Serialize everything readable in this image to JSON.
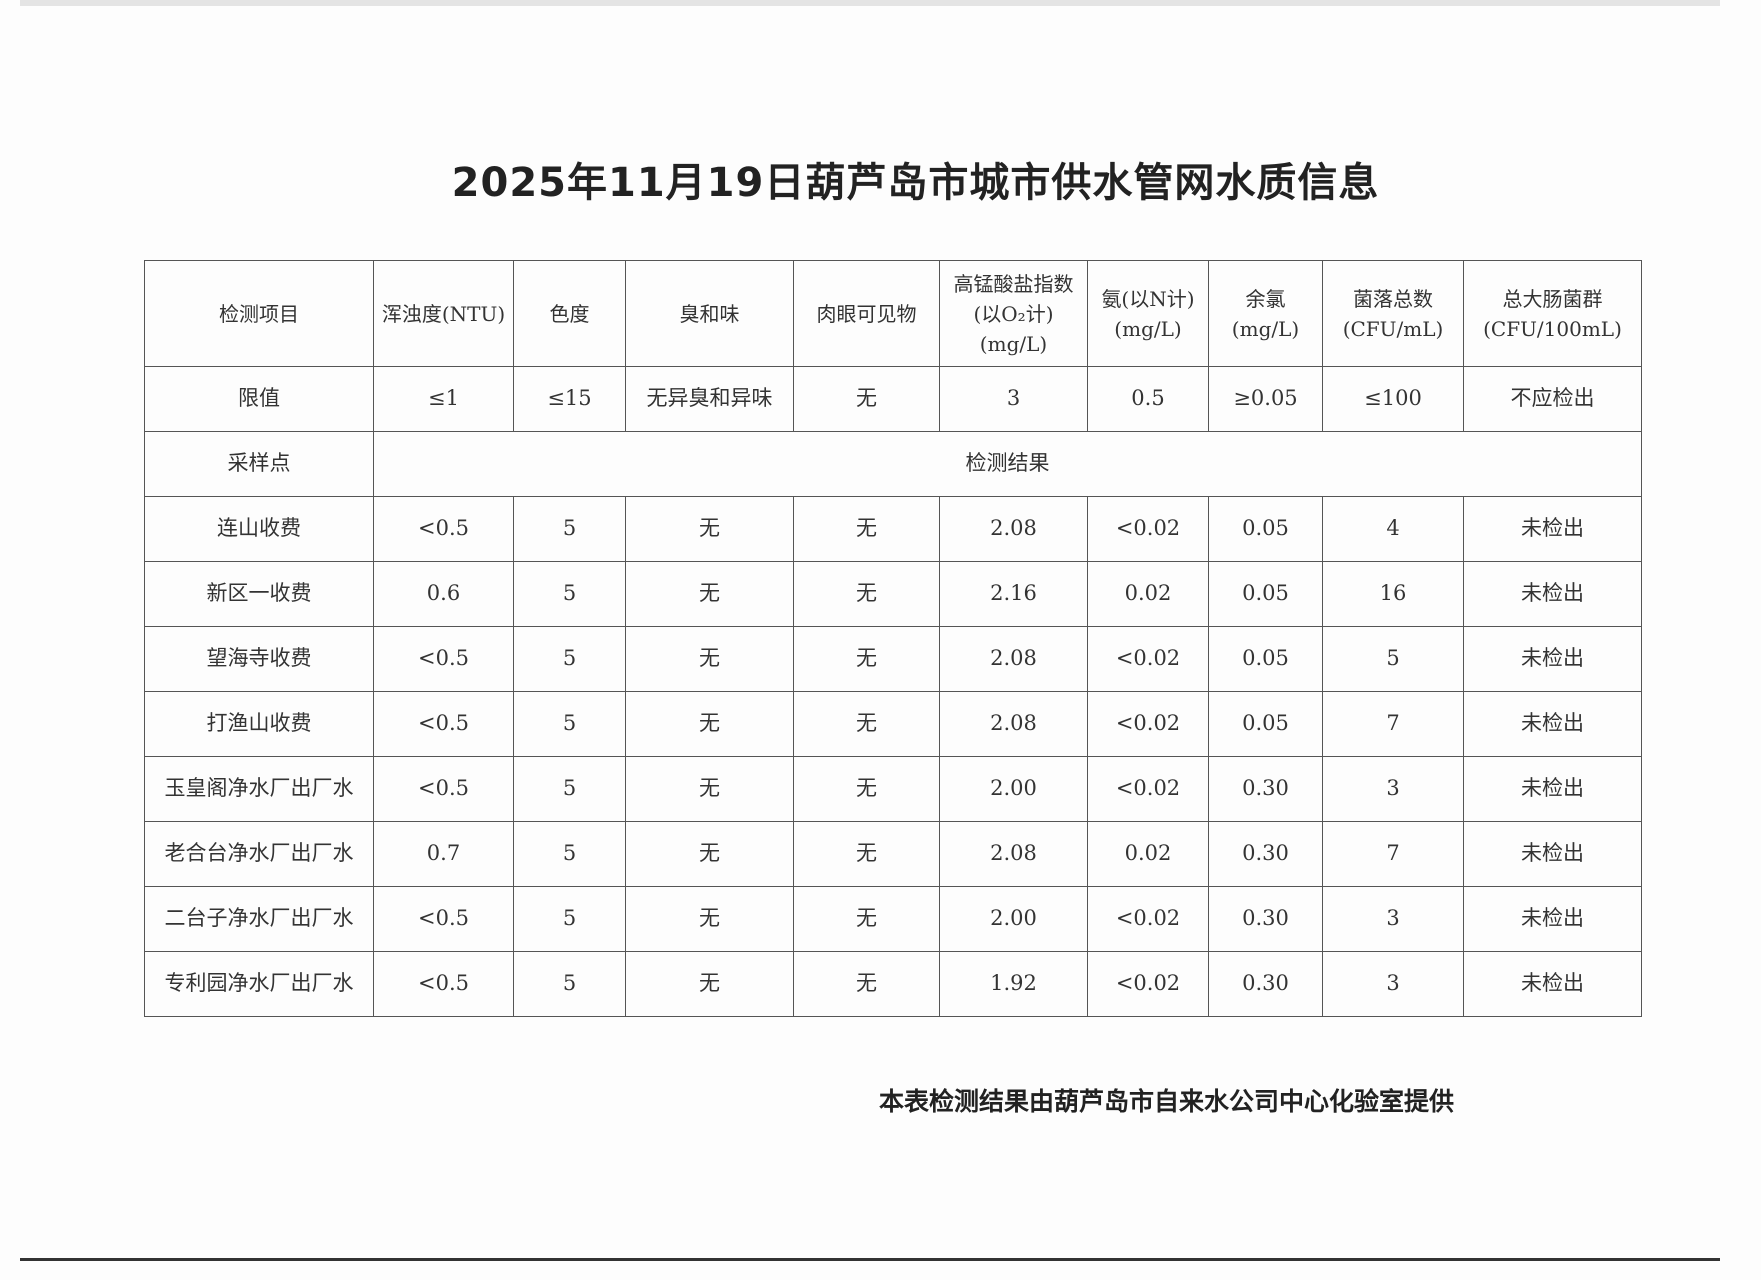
{
  "title": "2025年11月19日葫芦岛市城市供水管网水质信息",
  "table": {
    "headers": [
      "检测项目",
      "浑浊度(NTU)",
      "色度",
      "臭和味",
      "肉眼可见物",
      [
        "高锰酸盐指数",
        "(以O₂计)",
        "(mg/L)"
      ],
      [
        "氨(以N计)",
        "(mg/L)"
      ],
      [
        "余氯",
        "(mg/L)"
      ],
      [
        "菌落总数",
        "(CFU/mL)"
      ],
      [
        "总大肠菌群",
        "(CFU/100mL)"
      ]
    ],
    "limits_label": "限值",
    "limits": [
      "≤1",
      "≤15",
      "无异臭和异味",
      "无",
      "3",
      "0.5",
      "≥0.05",
      "≤100",
      "不应检出"
    ],
    "sample_label": "采样点",
    "result_label": "检测结果",
    "rows": [
      [
        "连山收费",
        "<0.5",
        "5",
        "无",
        "无",
        "2.08",
        "<0.02",
        "0.05",
        "4",
        "未检出"
      ],
      [
        "新区一收费",
        "0.6",
        "5",
        "无",
        "无",
        "2.16",
        "0.02",
        "0.05",
        "16",
        "未检出"
      ],
      [
        "望海寺收费",
        "<0.5",
        "5",
        "无",
        "无",
        "2.08",
        "<0.02",
        "0.05",
        "5",
        "未检出"
      ],
      [
        "打渔山收费",
        "<0.5",
        "5",
        "无",
        "无",
        "2.08",
        "<0.02",
        "0.05",
        "7",
        "未检出"
      ],
      [
        "玉皇阁净水厂出厂水",
        "<0.5",
        "5",
        "无",
        "无",
        "2.00",
        "<0.02",
        "0.30",
        "3",
        "未检出"
      ],
      [
        "老合台净水厂出厂水",
        "0.7",
        "5",
        "无",
        "无",
        "2.08",
        "0.02",
        "0.30",
        "7",
        "未检出"
      ],
      [
        "二台子净水厂出厂水",
        "<0.5",
        "5",
        "无",
        "无",
        "2.00",
        "<0.02",
        "0.30",
        "3",
        "未检出"
      ],
      [
        "专利园净水厂出厂水",
        "<0.5",
        "5",
        "无",
        "无",
        "1.92",
        "<0.02",
        "0.30",
        "3",
        "未检出"
      ]
    ]
  },
  "footer": "本表检测结果由葫芦岛市自来水公司中心化验室提供"
}
